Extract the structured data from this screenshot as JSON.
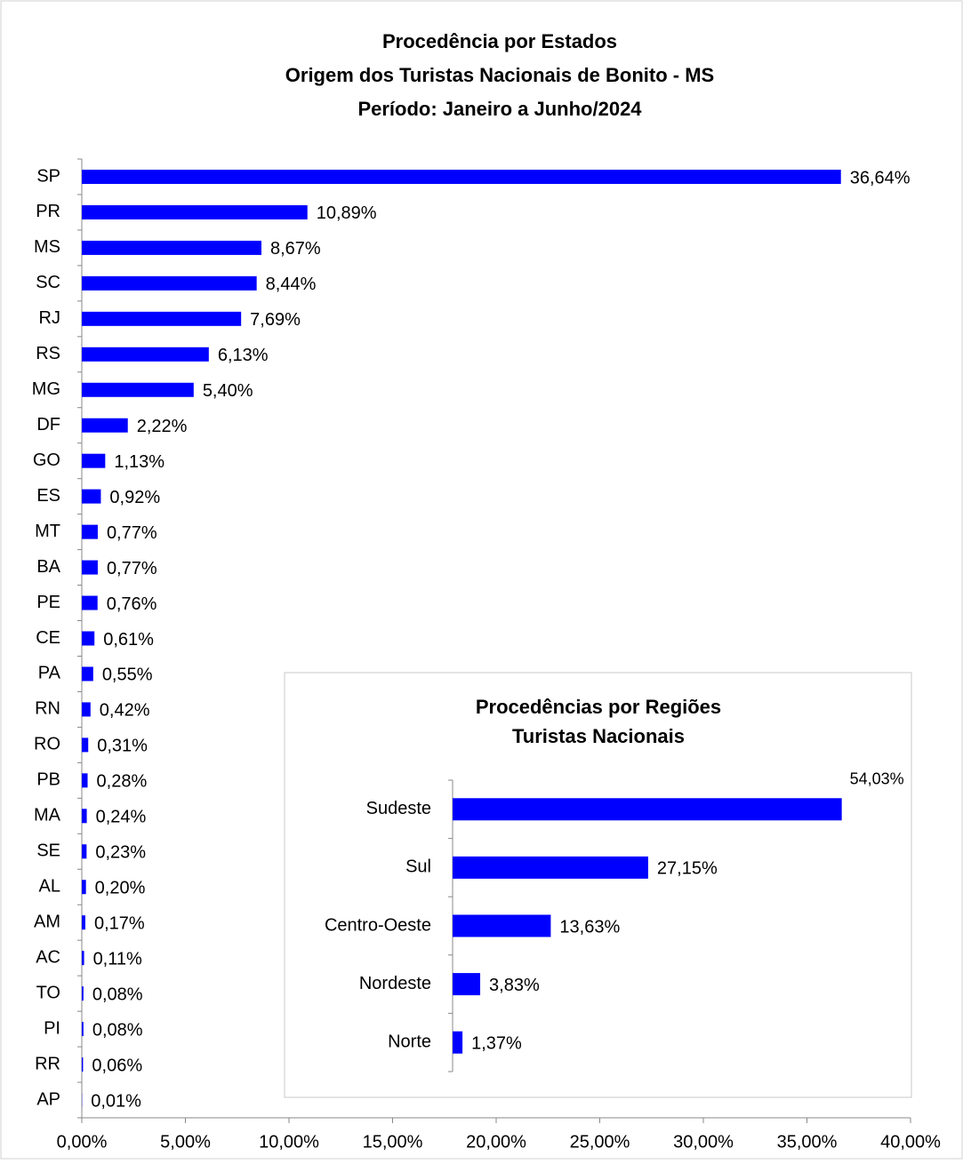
{
  "chart_data": [
    {
      "type": "hbar",
      "title": [
        "Procedência por Estados",
        "Origem dos Turistas Nacionais de Bonito - MS",
        "Período: Janeiro a Junho/2024"
      ],
      "categories": [
        "SP",
        "PR",
        "MS",
        "SC",
        "RJ",
        "RS",
        "MG",
        "DF",
        "GO",
        "ES",
        "MT",
        "BA",
        "PE",
        "CE",
        "PA",
        "RN",
        "RO",
        "PB",
        "MA",
        "SE",
        "AL",
        "AM",
        "AC",
        "TO",
        "PI",
        "RR",
        "AP"
      ],
      "values": [
        36.64,
        10.89,
        8.67,
        8.44,
        7.69,
        6.13,
        5.4,
        2.22,
        1.13,
        0.92,
        0.77,
        0.77,
        0.76,
        0.61,
        0.55,
        0.42,
        0.31,
        0.28,
        0.24,
        0.23,
        0.2,
        0.17,
        0.11,
        0.08,
        0.08,
        0.06,
        0.01
      ],
      "value_labels": [
        "36,64%",
        "10,89%",
        "8,67%",
        "8,44%",
        "7,69%",
        "6,13%",
        "5,40%",
        "2,22%",
        "1,13%",
        "0,92%",
        "0,77%",
        "0,77%",
        "0,76%",
        "0,61%",
        "0,55%",
        "0,42%",
        "0,31%",
        "0,28%",
        "0,24%",
        "0,23%",
        "0,20%",
        "0,17%",
        "0,11%",
        "0,08%",
        "0,08%",
        "0,06%",
        "0,01%"
      ],
      "color": "#0000ff",
      "xlim": [
        0,
        40
      ],
      "xticks": [
        {
          "value": 0,
          "label": "0,00%"
        },
        {
          "value": 5,
          "label": "5,00%"
        },
        {
          "value": 10,
          "label": "10,00%"
        },
        {
          "value": 15,
          "label": "15,00%"
        },
        {
          "value": 20,
          "label": "20,00%"
        },
        {
          "value": 25,
          "label": "25,00%"
        },
        {
          "value": 30,
          "label": "30,00%"
        },
        {
          "value": 35,
          "label": "35,00%"
        },
        {
          "value": 40,
          "label": "40,00%"
        }
      ]
    },
    {
      "type": "hbar",
      "title": [
        "Procedências por Regiões",
        "Turistas Nacionais"
      ],
      "categories": [
        "Sudeste",
        "Sul",
        "Centro-Oeste",
        "Nordeste",
        "Norte"
      ],
      "values": [
        54.03,
        27.15,
        13.63,
        3.83,
        1.37
      ],
      "value_labels": [
        "54,03%",
        "27,15%",
        "13,63%",
        "3,83%",
        "1,37%"
      ],
      "color": "#0000ff",
      "xlim": [
        0,
        60
      ]
    }
  ]
}
